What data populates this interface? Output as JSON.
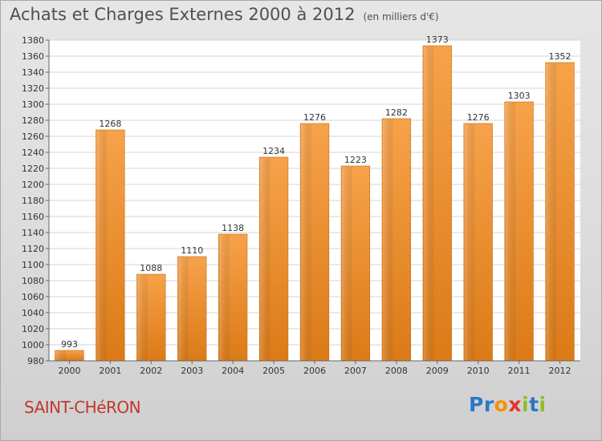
{
  "chart_data": {
    "type": "bar",
    "title": "Achats et Charges Externes 2000 à 2012",
    "unit_label": "(en milliers d'€)",
    "categories": [
      "2000",
      "2001",
      "2002",
      "2003",
      "2004",
      "2005",
      "2006",
      "2007",
      "2008",
      "2009",
      "2010",
      "2011",
      "2012"
    ],
    "values": [
      993,
      1268,
      1088,
      1110,
      1138,
      1234,
      1276,
      1223,
      1282,
      1373,
      1276,
      1303,
      1352
    ],
    "ylim": [
      980,
      1380
    ],
    "yticks": [
      980,
      1000,
      1020,
      1040,
      1060,
      1080,
      1100,
      1120,
      1140,
      1160,
      1180,
      1200,
      1220,
      1240,
      1260,
      1280,
      1300,
      1320,
      1340,
      1360,
      1380
    ],
    "grid": true,
    "xlabel": "",
    "ylabel": "",
    "bar_color": "#f0922c"
  },
  "footer": {
    "city": "SAINT-CHéRON",
    "logo": {
      "letters": [
        "P",
        "r",
        "o",
        "x",
        "i",
        "t",
        "i"
      ],
      "colors": [
        "#2a78c8",
        "#2a78c8",
        "#f39200",
        "#e5332a",
        "#8cbf26",
        "#2a78c8",
        "#8cbf26"
      ]
    }
  }
}
